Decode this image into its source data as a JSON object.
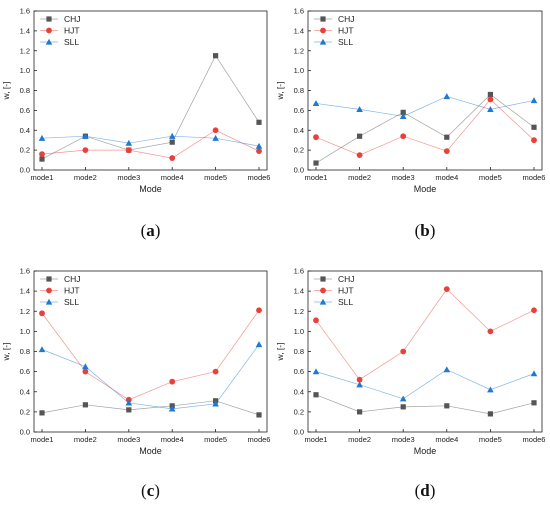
{
  "chart_data": [
    {
      "panel_label": "a",
      "type": "line",
      "categories": [
        "mode1",
        "mode2",
        "mode3",
        "mode4",
        "mode5",
        "mode6"
      ],
      "xlabel": "Mode",
      "ylabel": "w, [-]",
      "ylim": [
        0.0,
        1.6
      ],
      "yticks": [
        "0.0",
        "0.2",
        "0.4",
        "0.6",
        "0.8",
        "1.0",
        "1.2",
        "1.4",
        "1.6"
      ],
      "grid": false,
      "legend": "top-left",
      "series": [
        {
          "name": "CHJ",
          "values": [
            0.11,
            0.34,
            0.2,
            0.28,
            1.15,
            0.48
          ],
          "color": "#555555",
          "marker": "square"
        },
        {
          "name": "HJT",
          "values": [
            0.16,
            0.2,
            0.2,
            0.12,
            0.4,
            0.19
          ],
          "color": "#e8413a",
          "marker": "circle"
        },
        {
          "name": "SLL",
          "values": [
            0.32,
            0.34,
            0.27,
            0.34,
            0.32,
            0.24
          ],
          "color": "#1f78d1",
          "marker": "triangle"
        }
      ]
    },
    {
      "panel_label": "b",
      "type": "line",
      "categories": [
        "mode1",
        "mode2",
        "mode3",
        "mode4",
        "mode5",
        "mode6"
      ],
      "xlabel": "Mode",
      "ylabel": "w, [-]",
      "ylim": [
        0.0,
        1.6
      ],
      "yticks": [
        "0.0",
        "0.2",
        "0.4",
        "0.6",
        "0.8",
        "1.0",
        "1.2",
        "1.4",
        "1.6"
      ],
      "grid": false,
      "legend": "top-left",
      "series": [
        {
          "name": "CHJ",
          "values": [
            0.07,
            0.34,
            0.58,
            0.33,
            0.76,
            0.43
          ],
          "color": "#555555",
          "marker": "square"
        },
        {
          "name": "HJT",
          "values": [
            0.33,
            0.15,
            0.34,
            0.19,
            0.71,
            0.3
          ],
          "color": "#e8413a",
          "marker": "circle"
        },
        {
          "name": "SLL",
          "values": [
            0.67,
            0.61,
            0.54,
            0.74,
            0.61,
            0.7
          ],
          "color": "#1f78d1",
          "marker": "triangle"
        }
      ]
    },
    {
      "panel_label": "c",
      "type": "line",
      "categories": [
        "mode1",
        "mode2",
        "mode3",
        "mode4",
        "mode5",
        "mode6"
      ],
      "xlabel": "Mode",
      "ylabel": "w, [-]",
      "ylim": [
        0.0,
        1.6
      ],
      "yticks": [
        "0.0",
        "0.2",
        "0.4",
        "0.6",
        "0.8",
        "1.0",
        "1.2",
        "1.4",
        "1.6"
      ],
      "grid": false,
      "legend": "top-left",
      "series": [
        {
          "name": "CHJ",
          "values": [
            0.19,
            0.27,
            0.22,
            0.26,
            0.31,
            0.17
          ],
          "color": "#555555",
          "marker": "square"
        },
        {
          "name": "HJT",
          "values": [
            1.18,
            0.6,
            0.32,
            0.5,
            0.6,
            1.21
          ],
          "color": "#e8413a",
          "marker": "circle"
        },
        {
          "name": "SLL",
          "values": [
            0.82,
            0.65,
            0.29,
            0.23,
            0.28,
            0.87
          ],
          "color": "#1f78d1",
          "marker": "triangle"
        }
      ]
    },
    {
      "panel_label": "d",
      "type": "line",
      "categories": [
        "mode1",
        "mode2",
        "mode3",
        "mode4",
        "mode5",
        "mode6"
      ],
      "xlabel": "Mode",
      "ylabel": "w, [-]",
      "ylim": [
        0.0,
        1.6
      ],
      "yticks": [
        "0.0",
        "0.2",
        "0.4",
        "0.6",
        "0.8",
        "1.0",
        "1.2",
        "1.4",
        "1.6"
      ],
      "grid": false,
      "legend": "top-left",
      "series": [
        {
          "name": "CHJ",
          "values": [
            0.37,
            0.2,
            0.25,
            0.26,
            0.18,
            0.29
          ],
          "color": "#555555",
          "marker": "square"
        },
        {
          "name": "HJT",
          "values": [
            1.11,
            0.52,
            0.8,
            1.42,
            1.0,
            1.21
          ],
          "color": "#e8413a",
          "marker": "circle"
        },
        {
          "name": "SLL",
          "values": [
            0.6,
            0.47,
            0.33,
            0.62,
            0.42,
            0.58
          ],
          "color": "#1f78d1",
          "marker": "triangle"
        }
      ]
    }
  ]
}
